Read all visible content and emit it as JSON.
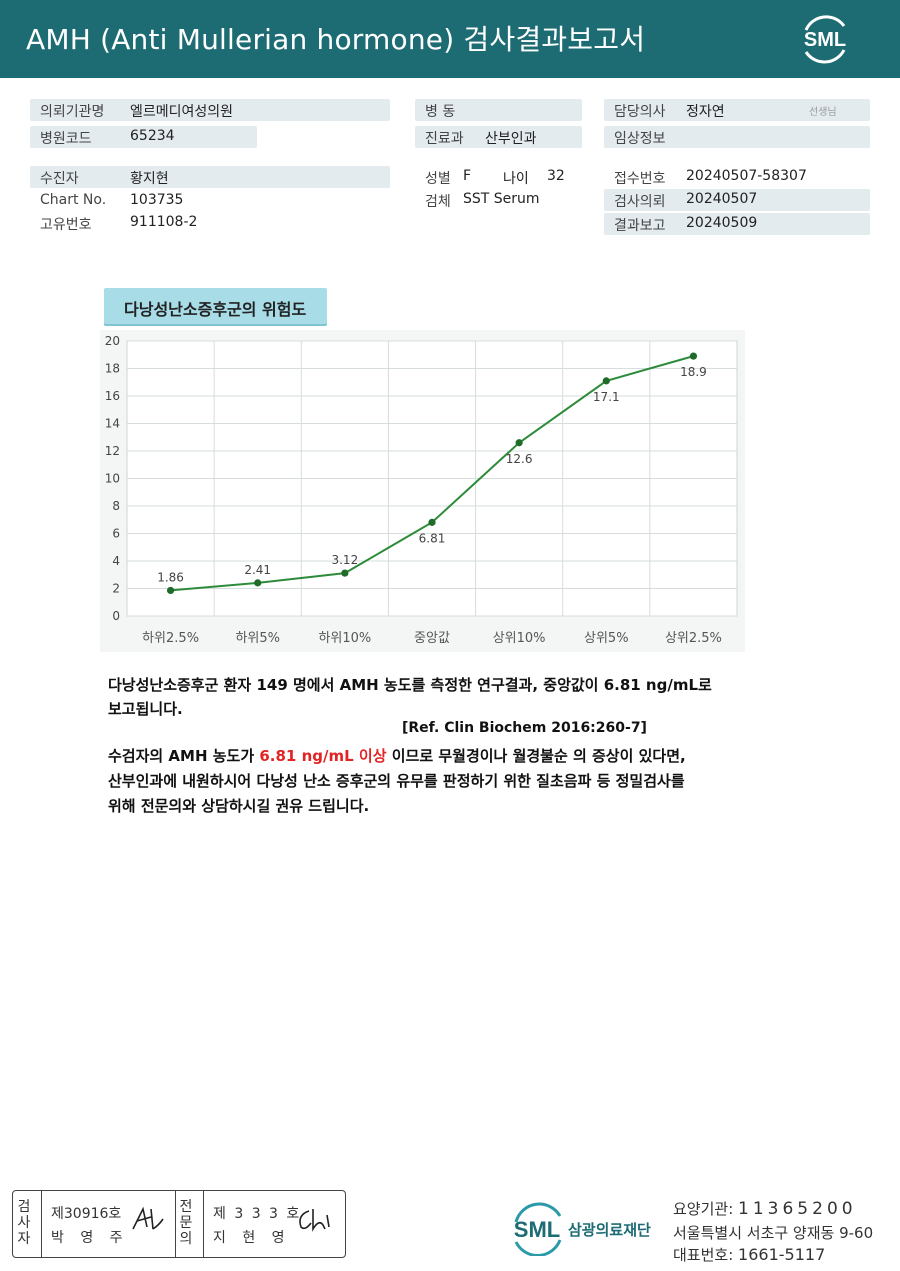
{
  "header": {
    "title": "AMH (Anti Mullerian hormone) 검사결과보고서",
    "logo_text": "SML",
    "bg_color": "#1d6c74"
  },
  "info": {
    "institution_label": "의뢰기관명",
    "institution_value": "엘르메디여성의원",
    "hospital_code_label": "병원코드",
    "hospital_code_value": "65234",
    "ward_label": "병  동",
    "ward_value": "",
    "department_label": "진료과",
    "department_value": "산부인과",
    "doctor_label": "담당의사",
    "doctor_value": "정자연",
    "doctor_suffix": "선생님",
    "clinical_label": "임상정보",
    "clinical_value": "",
    "patient_label": "수진자",
    "patient_value": "황지현",
    "chart_no_label": "Chart No.",
    "chart_no_value": "103735",
    "unique_no_label": "고유번호",
    "unique_no_value": "911108-2",
    "sex_label": "성별",
    "sex_value": "F",
    "age_label": "나이",
    "age_value": "32",
    "specimen_label": "검체",
    "specimen_value": "SST Serum",
    "receipt_label": "접수번호",
    "receipt_value": "20240507-58307",
    "request_label": "검사의뢰",
    "request_value": "20240507",
    "report_label": "결과보고",
    "report_value": "20240509"
  },
  "chart_title": "다낭성난소증후군의 위험도",
  "chart_data": {
    "type": "line",
    "title": "다낭성난소증후군의 위험도",
    "categories": [
      "하위2.5%",
      "하위5%",
      "하위10%",
      "중앙값",
      "상위10%",
      "상위5%",
      "상위2.5%"
    ],
    "values": [
      1.86,
      2.41,
      3.12,
      6.81,
      12.6,
      17.1,
      18.9
    ],
    "value_labels": [
      "1.86",
      "2.41",
      "3.12",
      "6.81",
      "12.6",
      "17.1",
      "18.9"
    ],
    "ylim": [
      0,
      20
    ],
    "yticks": [
      0,
      2,
      4,
      6,
      8,
      10,
      12,
      14,
      16,
      18,
      20
    ],
    "grid": true,
    "line_color": "#2e8b3a",
    "point_color": "#1e6b2a"
  },
  "text": {
    "p1_line1": "다낭성난소증후군 환자 149 명에서 AMH 농도를 측정한 연구결과, 중앙값이 6.81 ng/mL로",
    "p1_line2": "보고됩니다.",
    "ref": "[Ref. Clin Biochem 2016:260-7]",
    "p2_pre": "수검자의 AMH 농도가 ",
    "p2_highlight": "6.81 ng/mL 이상",
    "p2_post": " 이므로 무월경이나 월경불순 의 증상이 있다면,",
    "p2_line2": "산부인과에 내원하시어 다낭성 난소 증후군의 유무를 판정하기 위한 질초음파 등 정밀검사를",
    "p2_line3": "위해 전문의와 상담하시길 권유 드립니다.",
    "highlight_color": "#e22424"
  },
  "signature": {
    "examiner_label": "검사자",
    "examiner_no": "제30916호",
    "examiner_name": "박 영 주",
    "specialist_label": "전문의",
    "specialist_no": "제 3 3 3 호",
    "specialist_name": "지 현 영"
  },
  "footer": {
    "logo_text": "SML",
    "foundation": "삼광의료재단",
    "code_label": "요양기관:",
    "code_value": "11365200",
    "address": "서울특별시 서초구 양재동 9-60",
    "phone_label": "대표번호:",
    "phone_value": "1661-5117"
  }
}
